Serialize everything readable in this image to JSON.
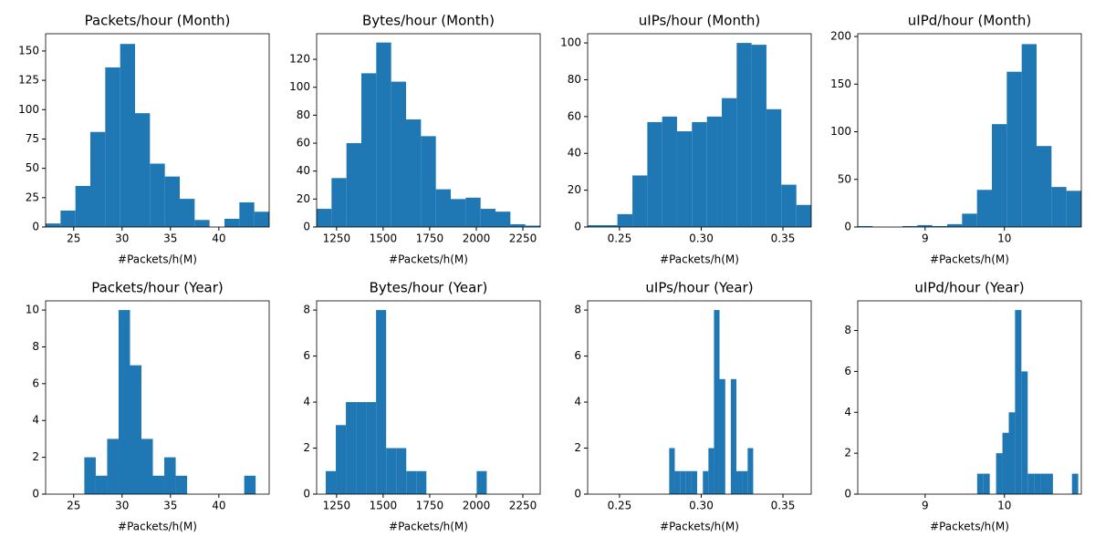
{
  "chart_data": [
    {
      "type": "histogram",
      "title": "Packets/hour (Month)",
      "xlabel": "#Packets/h(M)",
      "color": "#1f77b4",
      "bins": [
        22.1,
        23.64,
        25.18,
        26.72,
        28.26,
        29.8,
        31.34,
        32.88,
        34.42,
        35.96,
        37.5,
        39.04,
        40.58,
        42.12,
        43.66,
        45.2
      ],
      "values": [
        3,
        14,
        35,
        81,
        136,
        156,
        97,
        54,
        43,
        24,
        6,
        0,
        7,
        21,
        13
      ],
      "xlim": [
        22.1,
        45.2
      ],
      "xticks": [
        25,
        30,
        35,
        40
      ],
      "ylim": [
        0,
        164.7
      ],
      "yticks": [
        0,
        25,
        50,
        75,
        100,
        125,
        150
      ]
    },
    {
      "type": "histogram",
      "title": "Bytes/hour (Month)",
      "xlabel": "#Packets/h(M)",
      "color": "#1f77b4",
      "bins": [
        1143,
        1223,
        1303,
        1383,
        1463,
        1543,
        1623,
        1703,
        1783,
        1863,
        1943,
        2023,
        2103,
        2183,
        2263,
        2343
      ],
      "values": [
        13,
        35,
        60,
        110,
        132,
        104,
        77,
        65,
        27,
        20,
        21,
        13,
        11,
        2,
        1
      ],
      "xlim": [
        1143,
        2343
      ],
      "xticks": [
        1250,
        1500,
        1750,
        2000,
        2250
      ],
      "ylim": [
        0,
        138.3
      ],
      "yticks": [
        0,
        20,
        40,
        60,
        80,
        100,
        120
      ]
    },
    {
      "type": "histogram",
      "title": "uIPs/hour (Month)",
      "xlabel": "#Packets/h(M)",
      "color": "#1f77b4",
      "bins": [
        0.2305,
        0.2396,
        0.2487,
        0.2579,
        0.267,
        0.2761,
        0.2852,
        0.2943,
        0.3035,
        0.3126,
        0.3217,
        0.3308,
        0.3399,
        0.349,
        0.3582,
        0.3673
      ],
      "values": [
        1,
        1,
        7,
        28,
        57,
        60,
        52,
        57,
        60,
        70,
        100,
        99,
        64,
        23,
        12
      ],
      "xlim": [
        0.2305,
        0.3673
      ],
      "xticks": [
        0.25,
        {
          "value": 0.3,
          "label": "0.30"
        },
        0.35
      ],
      "ylim": [
        0,
        105
      ],
      "yticks": [
        0,
        20,
        40,
        60,
        80,
        100
      ]
    },
    {
      "type": "histogram",
      "title": "uIPd/hour (Month)",
      "xlabel": "#Packets/h(M)",
      "color": "#1f77b4",
      "bins": [
        8.15,
        8.338,
        8.526,
        8.714,
        8.902,
        9.09,
        9.278,
        9.466,
        9.654,
        9.842,
        10.03,
        10.218,
        10.406,
        10.594,
        10.782,
        10.97
      ],
      "values": [
        1,
        0,
        0,
        1,
        2,
        1,
        3,
        14,
        39,
        108,
        163,
        192,
        85,
        42,
        38
      ],
      "xlim": [
        8.15,
        10.97
      ],
      "xticks": [
        9,
        10
      ],
      "ylim": [
        0,
        202.9
      ],
      "yticks": [
        0,
        50,
        100,
        150,
        200
      ]
    },
    {
      "type": "histogram",
      "title": "Packets/hour (Year)",
      "xlabel": "#Packets/h(M)",
      "color": "#1f77b4",
      "bins": [
        26.1,
        27.28,
        28.46,
        29.64,
        30.82,
        32.0,
        33.18,
        34.36,
        35.54,
        36.72,
        37.9,
        39.08,
        40.26,
        41.44,
        42.62,
        43.8
      ],
      "values": [
        2,
        1,
        3,
        10,
        7,
        3,
        1,
        2,
        1,
        0,
        0,
        0,
        0,
        0,
        1
      ],
      "xlim": [
        22.1,
        45.2
      ],
      "xticks": [
        25,
        30,
        35,
        40
      ],
      "ylim": [
        0,
        10.5
      ],
      "yticks": [
        0,
        2,
        4,
        6,
        8,
        10
      ]
    },
    {
      "type": "histogram",
      "title": "Bytes/hour (Year)",
      "xlabel": "#Packets/h(M)",
      "color": "#1f77b4",
      "bins": [
        1192,
        1246,
        1300,
        1354,
        1408,
        1462,
        1516,
        1570,
        1624,
        1678,
        1732,
        1786,
        1840,
        1894,
        1948,
        2002,
        2056
      ],
      "values": [
        1,
        3,
        4,
        4,
        4,
        8,
        2,
        2,
        1,
        1,
        0,
        0,
        0,
        0,
        0,
        1
      ],
      "xlim": [
        1143,
        2343
      ],
      "xticks": [
        1250,
        1500,
        1750,
        2000,
        2250
      ],
      "ylim": [
        0,
        8.4
      ],
      "yticks": [
        0,
        2,
        4,
        6,
        8
      ]
    },
    {
      "type": "histogram",
      "title": "uIPs/hour (Year)",
      "xlabel": "#Packets/h(M)",
      "color": "#1f77b4",
      "bins": [
        0.2804,
        0.2838,
        0.2873,
        0.2907,
        0.2941,
        0.2975,
        0.301,
        0.3044,
        0.3078,
        0.3112,
        0.3147,
        0.3181,
        0.3215,
        0.3249,
        0.3284,
        0.3318
      ],
      "values": [
        2,
        1,
        1,
        1,
        1,
        0,
        1,
        2,
        8,
        5,
        0,
        5,
        1,
        1,
        2
      ],
      "xlim": [
        0.2305,
        0.3673
      ],
      "xticks": [
        0.25,
        {
          "value": 0.3,
          "label": "0.30"
        },
        0.35
      ],
      "ylim": [
        0,
        8.4
      ],
      "yticks": [
        0,
        2,
        4,
        6,
        8
      ]
    },
    {
      "type": "histogram",
      "title": "uIPd/hour (Year)",
      "xlabel": "#Packets/h(M)",
      "color": "#1f77b4",
      "bins": [
        9.656,
        9.736,
        9.815,
        9.895,
        9.975,
        10.055,
        10.134,
        10.214,
        10.294,
        10.373,
        10.453,
        10.533,
        10.612,
        10.692,
        10.772,
        10.852,
        10.931
      ],
      "values": [
        1,
        1,
        0,
        2,
        3,
        4,
        9,
        6,
        1,
        1,
        1,
        1,
        0,
        0,
        0,
        1
      ],
      "xlim": [
        8.15,
        10.97
      ],
      "xticks": [
        9,
        10
      ],
      "ylim": [
        0,
        9.45
      ],
      "yticks": [
        0,
        2,
        4,
        6,
        8
      ]
    }
  ]
}
